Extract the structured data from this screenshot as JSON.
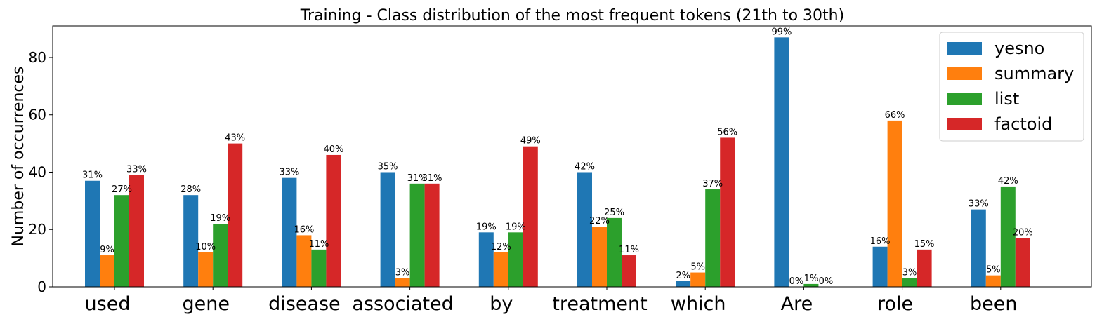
{
  "chart_data": {
    "type": "bar",
    "title": "Training - Class distribution of the most frequent tokens (21th to 30th)",
    "ylabel": "Number of occurrences",
    "xlabel": "",
    "categories": [
      "used",
      "gene",
      "disease",
      "associated",
      "by",
      "treatment",
      "which",
      "Are",
      "role",
      "been"
    ],
    "ylim": [
      0,
      91
    ],
    "yticks": [
      0,
      20,
      40,
      60,
      80
    ],
    "grid": false,
    "legend_position": "top-right",
    "series": [
      {
        "name": "yesno",
        "color": "#1f77b4",
        "values": [
          37,
          32,
          38,
          40,
          19,
          40,
          2,
          87,
          14,
          27
        ],
        "labels": [
          "31%",
          "28%",
          "33%",
          "35%",
          "19%",
          "42%",
          "2%",
          "99%",
          "16%",
          "33%"
        ]
      },
      {
        "name": "summary",
        "color": "#ff7f0e",
        "values": [
          11,
          12,
          18,
          3,
          12,
          21,
          5,
          0,
          58,
          4
        ],
        "labels": [
          "9%",
          "10%",
          "16%",
          "3%",
          "12%",
          "22%",
          "5%",
          "0%",
          "66%",
          "5%"
        ]
      },
      {
        "name": "list",
        "color": "#2ca02c",
        "values": [
          32,
          22,
          13,
          36,
          19,
          24,
          34,
          1,
          3,
          35
        ],
        "labels": [
          "27%",
          "19%",
          "11%",
          "31%",
          "19%",
          "25%",
          "37%",
          "1%",
          "3%",
          "42%"
        ]
      },
      {
        "name": "factoid",
        "color": "#d62728",
        "values": [
          39,
          50,
          46,
          36,
          49,
          11,
          52,
          0,
          13,
          17
        ],
        "labels": [
          "33%",
          "43%",
          "40%",
          "31%",
          "49%",
          "11%",
          "56%",
          "0%",
          "15%",
          "20%"
        ]
      }
    ]
  }
}
